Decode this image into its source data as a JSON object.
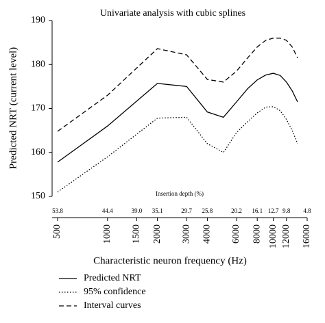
{
  "chart_data": {
    "type": "line",
    "title": "Univariate analysis with cubic splines",
    "xlabel": "Characteristic neuron frequency (Hz)",
    "ylabel": "Predicted NRT (current level)",
    "xscale": "log",
    "x": [
      500,
      1000,
      2000,
      3000,
      4000,
      5000,
      6000,
      7000,
      8000,
      9000,
      10000,
      11000,
      12000,
      13000,
      14000
    ],
    "series": [
      {
        "name": "Predicted NRT",
        "color": "#000000",
        "dash": "solid",
        "values": [
          157.8,
          166,
          175.7,
          175,
          169.2,
          168,
          171.5,
          174.5,
          176.5,
          177.6,
          178,
          177.5,
          176,
          174,
          171.5
        ]
      },
      {
        "name": "95% confidence",
        "color": "#000000",
        "dash": "dotted",
        "values": [
          151,
          159,
          167.8,
          168,
          162,
          160,
          164.5,
          167,
          169,
          170.3,
          170.4,
          169.5,
          167.5,
          165,
          162
        ]
      },
      {
        "name": "Interval curves",
        "color": "#000000",
        "dash": "dashed",
        "values": [
          164.8,
          173,
          183.6,
          182.2,
          176.6,
          176,
          178.5,
          181.5,
          184,
          185.5,
          186,
          186,
          185.5,
          184,
          181.5
        ]
      }
    ],
    "xlim": [
      500,
      16000
    ],
    "xticks": [
      500,
      1000,
      1500,
      2000,
      3000,
      4000,
      6000,
      8000,
      10000,
      12000,
      16000
    ],
    "ylim": [
      150,
      190
    ],
    "yticks": [
      150,
      160,
      170,
      180,
      190
    ],
    "insertion_depth": {
      "label": "Insertion depth (%)",
      "ticks": [
        {
          "value": 500,
          "label": "53.8"
        },
        {
          "value": 1000,
          "label": "44.4"
        },
        {
          "value": 1500,
          "label": "39.0"
        },
        {
          "value": 2000,
          "label": "35.1"
        },
        {
          "value": 3000,
          "label": "29.7"
        },
        {
          "value": 4000,
          "label": "25.8"
        },
        {
          "value": 6000,
          "label": "20.2"
        },
        {
          "value": 8000,
          "label": "16.1"
        },
        {
          "value": 10000,
          "label": "12.7"
        },
        {
          "value": 12000,
          "label": "9.8"
        },
        {
          "value": 16000,
          "label": "4.8"
        }
      ]
    },
    "legend": "bottom-left"
  }
}
